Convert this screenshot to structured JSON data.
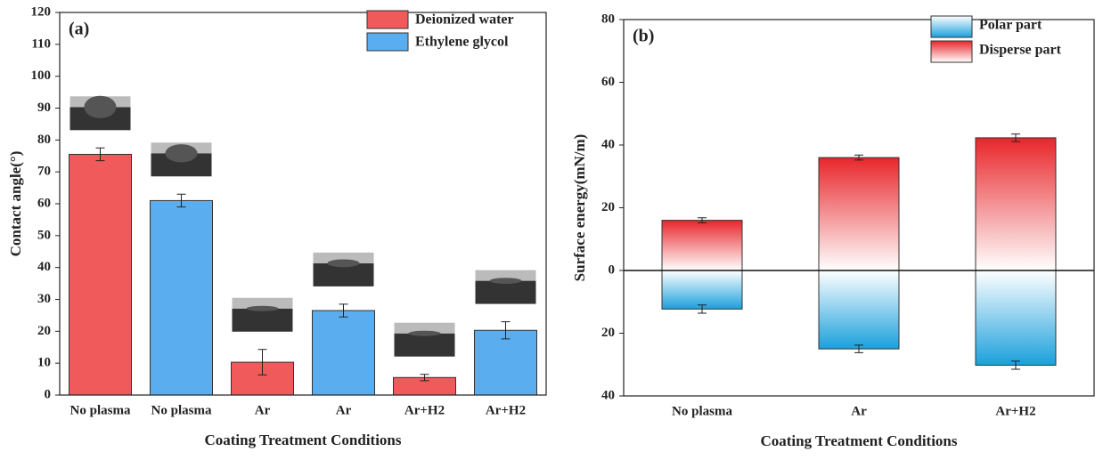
{
  "chart_data": [
    {
      "type": "bar",
      "panel_label": "(a)",
      "xlabel": "Coating Treatment Conditions",
      "ylabel": "Contact angle(°)",
      "categories": [
        "No plasma",
        "No plasma",
        "Ar",
        "Ar",
        "Ar+H2",
        "Ar+H2"
      ],
      "series": [
        {
          "name": "Deionized water",
          "color": "#f05a5a",
          "values": [
            75.5,
            null,
            10.3,
            null,
            5.5,
            null
          ],
          "errors": [
            2,
            null,
            4,
            null,
            1,
            null
          ]
        },
        {
          "name": "Ethylene glycol",
          "color": "#5aaef0",
          "values": [
            null,
            61,
            null,
            26.5,
            null,
            20.3
          ],
          "errors": [
            null,
            2,
            null,
            2,
            null,
            2.7
          ]
        }
      ],
      "ylim": [
        0,
        120
      ],
      "yticks": [
        0,
        10,
        20,
        30,
        40,
        50,
        60,
        70,
        80,
        90,
        100,
        110,
        120
      ],
      "legend": "upper right"
    },
    {
      "type": "bar",
      "panel_label": "(b)",
      "xlabel": "Coating Treatment Conditions",
      "ylabel": "Surface energy(mN/m)",
      "categories": [
        "No plasma",
        "Ar",
        "Ar+H2"
      ],
      "series": [
        {
          "name": "Polar part",
          "color": "#1aa0dc",
          "values": [
            -12.3,
            -25,
            -30.2
          ],
          "errors": [
            1.3,
            1.2,
            1.3
          ]
        },
        {
          "name": "Disperse part",
          "color": "#e8262b",
          "values": [
            16,
            36,
            42.3
          ],
          "errors": [
            0.8,
            0.8,
            1.2
          ]
        }
      ],
      "ylim": [
        -40,
        80
      ],
      "yticks": [
        {
          "value": -40,
          "label": "40"
        },
        {
          "value": -20,
          "label": "20"
        },
        0,
        20,
        40,
        60,
        80
      ],
      "legend": "upper right"
    }
  ]
}
